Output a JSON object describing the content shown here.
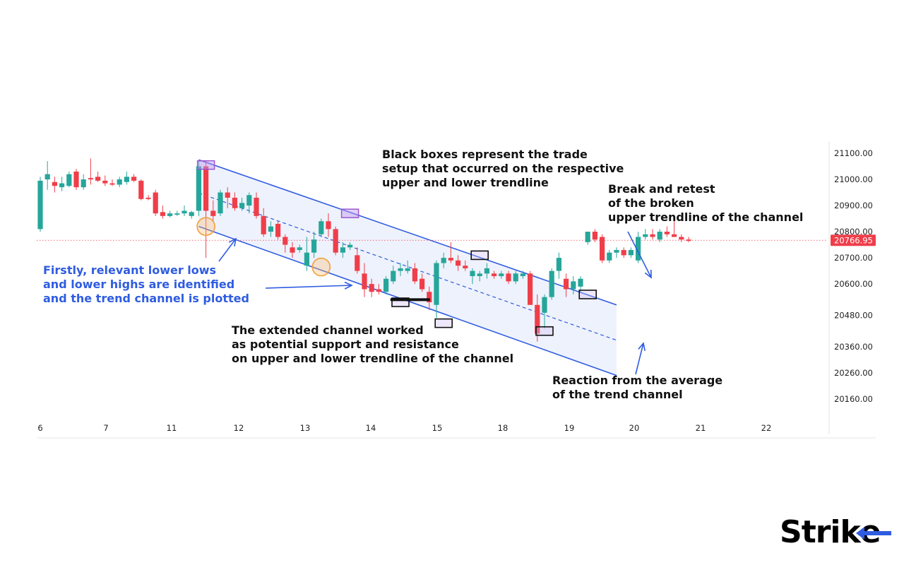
{
  "chart_data": {
    "type": "candlestick",
    "x_tick_labels": [
      "6",
      "7",
      "11",
      "12",
      "13",
      "14",
      "15",
      "18",
      "19",
      "20",
      "21",
      "22"
    ],
    "y_tick_labels": [
      "21100.00",
      "21000.00",
      "20900.00",
      "20800.00",
      "20700.00",
      "20600.00",
      "20480.00",
      "20360.00",
      "20260.00",
      "20160.00"
    ],
    "ylim": [
      20100,
      21140
    ],
    "current_price": 20766.95,
    "current_price_label": "20766.95",
    "colors": {
      "up": "#26a69a",
      "down": "#ef3e4a",
      "channel": "#2f5ce0",
      "channel_fill": "#eef2fc",
      "price_line": "#ef3e4a"
    },
    "candles": [
      {
        "o": 20810,
        "h": 21010,
        "l": 20800,
        "c": 20995
      },
      {
        "o": 21000,
        "h": 21070,
        "l": 20960,
        "c": 21020
      },
      {
        "o": 20990,
        "h": 21010,
        "l": 20950,
        "c": 20975
      },
      {
        "o": 20970,
        "h": 21010,
        "l": 20955,
        "c": 20985
      },
      {
        "o": 20975,
        "h": 21030,
        "l": 20970,
        "c": 21020
      },
      {
        "o": 21030,
        "h": 21040,
        "l": 20960,
        "c": 20970
      },
      {
        "o": 20970,
        "h": 21020,
        "l": 20960,
        "c": 21000
      },
      {
        "o": 21005,
        "h": 21080,
        "l": 20980,
        "c": 21000
      },
      {
        "o": 21010,
        "h": 21030,
        "l": 20990,
        "c": 20995
      },
      {
        "o": 20995,
        "h": 21015,
        "l": 20975,
        "c": 20985
      },
      {
        "o": 20985,
        "h": 21000,
        "l": 20975,
        "c": 20980
      },
      {
        "o": 20980,
        "h": 21010,
        "l": 20970,
        "c": 21000
      },
      {
        "o": 20990,
        "h": 21030,
        "l": 20980,
        "c": 21010
      },
      {
        "o": 21010,
        "h": 21020,
        "l": 20990,
        "c": 20995
      },
      {
        "o": 20995,
        "h": 21000,
        "l": 20920,
        "c": 20925
      },
      {
        "o": 20930,
        "h": 20940,
        "l": 20920,
        "c": 20925
      },
      {
        "o": 20950,
        "h": 20960,
        "l": 20860,
        "c": 20870
      },
      {
        "o": 20875,
        "h": 20900,
        "l": 20850,
        "c": 20860
      },
      {
        "o": 20860,
        "h": 20880,
        "l": 20855,
        "c": 20870
      },
      {
        "o": 20865,
        "h": 20880,
        "l": 20860,
        "c": 20870
      },
      {
        "o": 20870,
        "h": 20900,
        "l": 20860,
        "c": 20880
      },
      {
        "o": 20860,
        "h": 20880,
        "l": 20850,
        "c": 20875
      },
      {
        "o": 20880,
        "h": 21070,
        "l": 20860,
        "c": 21050
      },
      {
        "o": 21050,
        "h": 21070,
        "l": 20700,
        "c": 20880
      },
      {
        "o": 20880,
        "h": 20920,
        "l": 20840,
        "c": 20860
      },
      {
        "o": 20870,
        "h": 20960,
        "l": 20860,
        "c": 20950
      },
      {
        "o": 20950,
        "h": 20970,
        "l": 20890,
        "c": 20930
      },
      {
        "o": 20930,
        "h": 20950,
        "l": 20880,
        "c": 20890
      },
      {
        "o": 20890,
        "h": 20930,
        "l": 20880,
        "c": 20910
      },
      {
        "o": 20900,
        "h": 20950,
        "l": 20870,
        "c": 20940
      },
      {
        "o": 20930,
        "h": 20950,
        "l": 20850,
        "c": 20860
      },
      {
        "o": 20860,
        "h": 20890,
        "l": 20780,
        "c": 20790
      },
      {
        "o": 20800,
        "h": 20840,
        "l": 20780,
        "c": 20820
      },
      {
        "o": 20830,
        "h": 20840,
        "l": 20770,
        "c": 20780
      },
      {
        "o": 20780,
        "h": 20790,
        "l": 20720,
        "c": 20750
      },
      {
        "o": 20740,
        "h": 20760,
        "l": 20700,
        "c": 20720
      },
      {
        "o": 20730,
        "h": 20750,
        "l": 20720,
        "c": 20740
      },
      {
        "o": 20670,
        "h": 20780,
        "l": 20650,
        "c": 20720
      },
      {
        "o": 20720,
        "h": 20800,
        "l": 20700,
        "c": 20770
      },
      {
        "o": 20790,
        "h": 20850,
        "l": 20780,
        "c": 20840
      },
      {
        "o": 20840,
        "h": 20870,
        "l": 20780,
        "c": 20810
      },
      {
        "o": 20810,
        "h": 20820,
        "l": 20710,
        "c": 20720
      },
      {
        "o": 20720,
        "h": 20760,
        "l": 20700,
        "c": 20740
      },
      {
        "o": 20740,
        "h": 20760,
        "l": 20730,
        "c": 20750
      },
      {
        "o": 20710,
        "h": 20740,
        "l": 20640,
        "c": 20650
      },
      {
        "o": 20640,
        "h": 20680,
        "l": 20550,
        "c": 20580
      },
      {
        "o": 20600,
        "h": 20620,
        "l": 20550,
        "c": 20570
      },
      {
        "o": 20580,
        "h": 20600,
        "l": 20560,
        "c": 20570
      },
      {
        "o": 20570,
        "h": 20630,
        "l": 20560,
        "c": 20620
      },
      {
        "o": 20610,
        "h": 20670,
        "l": 20600,
        "c": 20650
      },
      {
        "o": 20650,
        "h": 20680,
        "l": 20630,
        "c": 20660
      },
      {
        "o": 20650,
        "h": 20690,
        "l": 20640,
        "c": 20660
      },
      {
        "o": 20660,
        "h": 20680,
        "l": 20600,
        "c": 20610
      },
      {
        "o": 20620,
        "h": 20640,
        "l": 20570,
        "c": 20580
      },
      {
        "o": 20570,
        "h": 20590,
        "l": 20500,
        "c": 20530
      },
      {
        "o": 20520,
        "h": 20690,
        "l": 20470,
        "c": 20680
      },
      {
        "o": 20680,
        "h": 20720,
        "l": 20660,
        "c": 20700
      },
      {
        "o": 20700,
        "h": 20760,
        "l": 20680,
        "c": 20690
      },
      {
        "o": 20690,
        "h": 20710,
        "l": 20650,
        "c": 20670
      },
      {
        "o": 20670,
        "h": 20690,
        "l": 20650,
        "c": 20660
      },
      {
        "o": 20630,
        "h": 20660,
        "l": 20600,
        "c": 20650
      },
      {
        "o": 20630,
        "h": 20650,
        "l": 20610,
        "c": 20640
      },
      {
        "o": 20640,
        "h": 20680,
        "l": 20620,
        "c": 20660
      },
      {
        "o": 20640,
        "h": 20650,
        "l": 20620,
        "c": 20630
      },
      {
        "o": 20630,
        "h": 20650,
        "l": 20620,
        "c": 20640
      },
      {
        "o": 20640,
        "h": 20650,
        "l": 20600,
        "c": 20610
      },
      {
        "o": 20610,
        "h": 20650,
        "l": 20600,
        "c": 20640
      },
      {
        "o": 20630,
        "h": 20650,
        "l": 20620,
        "c": 20640
      },
      {
        "o": 20640,
        "h": 20650,
        "l": 20520,
        "c": 20520
      },
      {
        "o": 20520,
        "h": 20560,
        "l": 20380,
        "c": 20410
      },
      {
        "o": 20490,
        "h": 20560,
        "l": 20430,
        "c": 20550
      },
      {
        "o": 20550,
        "h": 20660,
        "l": 20540,
        "c": 20650
      },
      {
        "o": 20650,
        "h": 20720,
        "l": 20620,
        "c": 20700
      },
      {
        "o": 20620,
        "h": 20640,
        "l": 20550,
        "c": 20580
      },
      {
        "o": 20580,
        "h": 20630,
        "l": 20560,
        "c": 20610
      },
      {
        "o": 20590,
        "h": 20630,
        "l": 20570,
        "c": 20620
      },
      {
        "o": 20760,
        "h": 20800,
        "l": 20750,
        "c": 20800
      },
      {
        "o": 20800,
        "h": 20810,
        "l": 20760,
        "c": 20770
      },
      {
        "o": 20780,
        "h": 20790,
        "l": 20680,
        "c": 20690
      },
      {
        "o": 20690,
        "h": 20730,
        "l": 20680,
        "c": 20720
      },
      {
        "o": 20720,
        "h": 20740,
        "l": 20700,
        "c": 20730
      },
      {
        "o": 20730,
        "h": 20740,
        "l": 20700,
        "c": 20710
      },
      {
        "o": 20710,
        "h": 20740,
        "l": 20700,
        "c": 20730
      },
      {
        "o": 20690,
        "h": 20800,
        "l": 20680,
        "c": 20780
      },
      {
        "o": 20780,
        "h": 20810,
        "l": 20770,
        "c": 20790
      },
      {
        "o": 20790,
        "h": 20810,
        "l": 20770,
        "c": 20780
      },
      {
        "o": 20770,
        "h": 20810,
        "l": 20760,
        "c": 20800
      },
      {
        "o": 20800,
        "h": 20820,
        "l": 20780,
        "c": 20790
      },
      {
        "o": 20790,
        "h": 20850,
        "l": 20780,
        "c": 20780
      },
      {
        "o": 20780,
        "h": 20790,
        "l": 20760,
        "c": 20770
      },
      {
        "o": 20770,
        "h": 20780,
        "l": 20760,
        "c": 20765
      }
    ],
    "channel": {
      "upper": [
        [
          22,
          21075
        ],
        [
          80,
          20520
        ]
      ],
      "lower": [
        [
          22,
          20820
        ],
        [
          80,
          20250
        ]
      ],
      "mid": [
        [
          22,
          20948
        ],
        [
          80,
          20385
        ]
      ]
    },
    "highlight_circles": [
      {
        "index": 23,
        "price": 20820
      },
      {
        "index": 39,
        "price": 20665
      }
    ],
    "purple_boxes": [
      {
        "index": 23,
        "price": 21055
      },
      {
        "index": 43,
        "price": 20870
      }
    ],
    "black_boxes": [
      {
        "index": 50,
        "price": 20530
      },
      {
        "index": 56,
        "price": 20450
      },
      {
        "index": 61,
        "price": 20710
      },
      {
        "index": 70,
        "price": 20420
      },
      {
        "index": 76,
        "price": 20560
      }
    ]
  },
  "annotations": {
    "black_boxes": "Black boxes represent the trade\nsetup that occurred on the respective\nupper and lower trendline",
    "break_retest": "Break and retest\nof the broken\nupper trendline of the channel",
    "firstly": "Firstly, relevant lower lows\nand lower highs are identified\nand the trend channel is plotted",
    "extended": "The extended channel worked\nas potential support and resistance\non upper and lower trendline of the channel",
    "reaction": "Reaction from the average\nof the trend channel"
  },
  "logo": {
    "text_main": "Stri",
    "text_k": "k",
    "text_last": "e"
  }
}
